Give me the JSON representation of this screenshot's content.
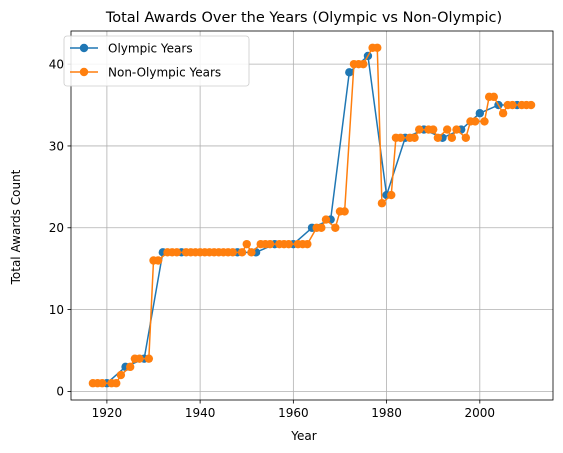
{
  "chart_data": {
    "type": "line",
    "title": "Total Awards Over the Years (Olympic vs Non-Olympic)",
    "xlabel": "Year",
    "ylabel": "Total Awards Count",
    "xlim": [
      1912.3,
      2015.7
    ],
    "ylim": [
      -1.05,
      44.05
    ],
    "xticks": [
      1920,
      1940,
      1960,
      1980,
      2000
    ],
    "yticks": [
      0,
      10,
      20,
      30,
      40
    ],
    "grid": true,
    "legend_position": "top-left",
    "series": [
      {
        "name": "Olympic Years",
        "color": "#1f77b4",
        "x": [
          1920,
          1924,
          1928,
          1932,
          1936,
          1948,
          1952,
          1956,
          1960,
          1964,
          1968,
          1972,
          1976,
          1980,
          1984,
          1988,
          1992,
          1996,
          2000,
          2004,
          2008
        ],
        "y": [
          1,
          3,
          4,
          17,
          17,
          17,
          17,
          18,
          18,
          20,
          21,
          39,
          41,
          24,
          31,
          32,
          31,
          32,
          34,
          35,
          35
        ]
      },
      {
        "name": "Non-Olympic Years",
        "color": "#ff7f0e",
        "x": [
          1917,
          1918,
          1919,
          1921,
          1922,
          1923,
          1925,
          1926,
          1927,
          1929,
          1930,
          1931,
          1933,
          1934,
          1935,
          1937,
          1938,
          1939,
          1940,
          1941,
          1942,
          1943,
          1944,
          1945,
          1946,
          1947,
          1949,
          1950,
          1951,
          1953,
          1954,
          1955,
          1957,
          1958,
          1959,
          1961,
          1962,
          1963,
          1965,
          1966,
          1967,
          1969,
          1970,
          1971,
          1973,
          1974,
          1975,
          1977,
          1978,
          1979,
          1981,
          1982,
          1983,
          1985,
          1986,
          1987,
          1989,
          1990,
          1991,
          1993,
          1994,
          1995,
          1997,
          1998,
          1999,
          2001,
          2002,
          2003,
          2005,
          2006,
          2007,
          2009,
          2010,
          2011
        ],
        "y": [
          1,
          1,
          1,
          1,
          1,
          2,
          3,
          4,
          4,
          4,
          16,
          16,
          17,
          17,
          17,
          17,
          17,
          17,
          17,
          17,
          17,
          17,
          17,
          17,
          17,
          17,
          17,
          18,
          17,
          18,
          18,
          18,
          18,
          18,
          18,
          18,
          18,
          18,
          20,
          20,
          21,
          20,
          22,
          22,
          40,
          40,
          40,
          42,
          42,
          23,
          24,
          31,
          31,
          31,
          31,
          32,
          32,
          32,
          31,
          32,
          31,
          32,
          31,
          33,
          33,
          33,
          36,
          36,
          34,
          35,
          35,
          35,
          35,
          35
        ]
      }
    ]
  }
}
